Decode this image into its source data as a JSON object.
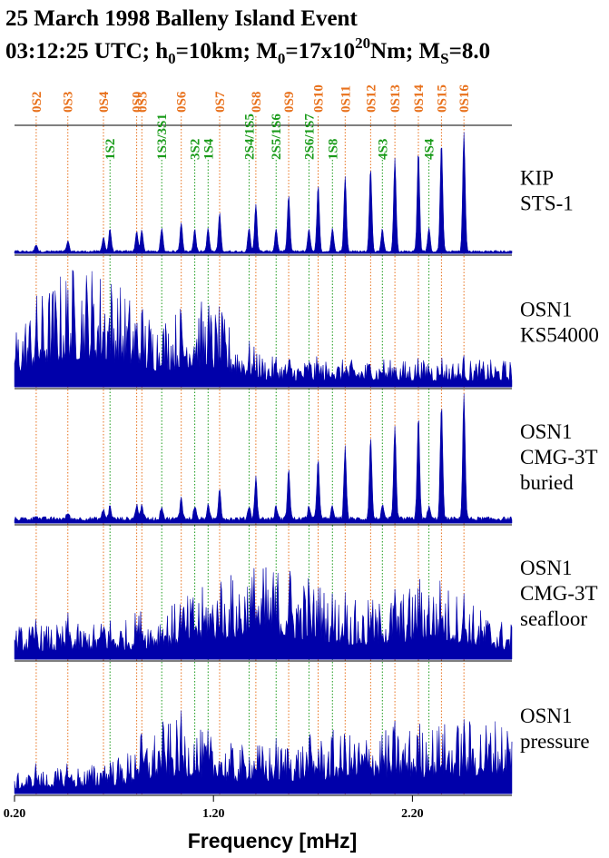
{
  "chart_data": {
    "type": "area",
    "title_line1": "25 March 1998 Balleny Island Event",
    "title_line2": {
      "a": "03:12:25 UTC; h",
      "a_sub": "0",
      "b": "=10km; M",
      "b_sub": "0",
      "c": "=17x10",
      "c_sup": "20",
      "d": "Nm; M",
      "d_sub": "S",
      "e": "=8.0"
    },
    "xlabel": "Frequency [mHz]",
    "xlim": [
      0.2,
      2.7
    ],
    "x_ticks": [
      {
        "value": 0.2,
        "label": "0.20"
      },
      {
        "value": 1.2,
        "label": "1.20"
      },
      {
        "value": 2.2,
        "label": "2.20"
      }
    ],
    "spheroidal_modes": [
      {
        "label": "0S2",
        "freq": 0.309
      },
      {
        "label": "0S3",
        "freq": 0.468
      },
      {
        "label": "0S4",
        "freq": 0.647
      },
      {
        "label": "0S0",
        "freq": 0.814
      },
      {
        "label": "0S5",
        "freq": 0.84
      },
      {
        "label": "0S6",
        "freq": 1.038
      },
      {
        "label": "0S7",
        "freq": 1.231
      },
      {
        "label": "0S8",
        "freq": 1.413
      },
      {
        "label": "0S9",
        "freq": 1.578
      },
      {
        "label": "0S10",
        "freq": 1.726
      },
      {
        "label": "0S11",
        "freq": 1.862
      },
      {
        "label": "0S12",
        "freq": 1.99
      },
      {
        "label": "0S13",
        "freq": 2.112
      },
      {
        "label": "0S14",
        "freq": 2.23
      },
      {
        "label": "0S15",
        "freq": 2.346
      },
      {
        "label": "0S16",
        "freq": 2.459
      }
    ],
    "overtone_modes": [
      {
        "label": "1S2",
        "freq": 0.68
      },
      {
        "label": "1S3/3S1",
        "freq": 0.94
      },
      {
        "label": "3S2",
        "freq": 1.106
      },
      {
        "label": "1S4",
        "freq": 1.173
      },
      {
        "label": "2S4/1S5",
        "freq": 1.379
      },
      {
        "label": "2S5/1S6",
        "freq": 1.515
      },
      {
        "label": "2S6/1S7",
        "freq": 1.68
      },
      {
        "label": "1S8",
        "freq": 1.798
      },
      {
        "label": "4S3",
        "freq": 2.049
      },
      {
        "label": "4S4",
        "freq": 2.283
      }
    ],
    "panels": [
      {
        "id": "kip",
        "line1": "KIP",
        "line2": "STS-1",
        "line3": ""
      },
      {
        "id": "ks54000",
        "line1": "OSN1",
        "line2": "KS54000",
        "line3": ""
      },
      {
        "id": "buried",
        "line1": "OSN1",
        "line2": "CMG-3T",
        "line3": "buried"
      },
      {
        "id": "seafloor",
        "line1": "OSN1",
        "line2": "CMG-3T",
        "line3": "seafloor"
      },
      {
        "id": "pressure",
        "line1": "OSN1",
        "line2": "pressure",
        "line3": ""
      }
    ],
    "colors": {
      "spectrum": "#0000aa",
      "fundamental_mode": "#e8711c",
      "overtone_mode": "#1a9b1a"
    }
  }
}
